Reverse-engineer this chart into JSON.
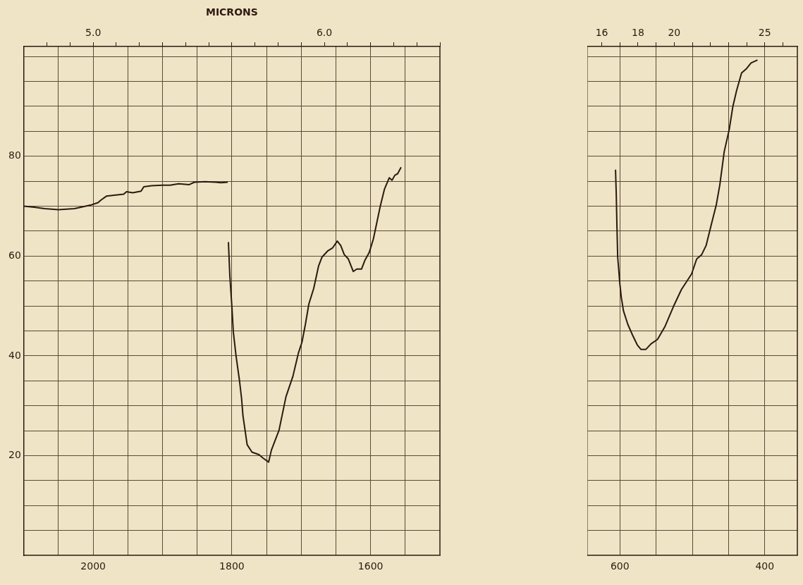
{
  "chart_data": [
    {
      "type": "line",
      "x2label": "MICRONS",
      "xlim": [
        2100,
        1500
      ],
      "ylim": [
        0,
        102
      ],
      "x2lim": [
        4.7,
        6.5
      ],
      "xticks": [
        {
          "value": 2050,
          "label": null
        },
        2000,
        {
          "value": 1950,
          "label": null
        },
        {
          "value": 1900,
          "label": null
        },
        {
          "value": 1850,
          "label": null
        },
        1800,
        {
          "value": 1750,
          "label": null
        },
        {
          "value": 1700,
          "label": null
        },
        {
          "value": 1650,
          "label": null
        },
        1600,
        {
          "value": 1550,
          "label": null
        }
      ],
      "yticks": [
        {
          "value": 5,
          "label": null
        },
        {
          "value": 10,
          "label": null
        },
        {
          "value": 15,
          "label": null
        },
        20,
        {
          "value": 25,
          "label": null
        },
        {
          "value": 30,
          "label": null
        },
        {
          "value": 35,
          "label": null
        },
        40,
        {
          "value": 45,
          "label": null
        },
        {
          "value": 50,
          "label": null
        },
        {
          "value": 55,
          "label": null
        },
        60,
        {
          "value": 65,
          "label": null
        },
        {
          "value": 70,
          "label": null
        },
        {
          "value": 75,
          "label": null
        },
        80,
        {
          "value": 85,
          "label": null
        },
        {
          "value": 90,
          "label": null
        },
        {
          "value": 95,
          "label": null
        },
        {
          "value": 100,
          "label": null
        }
      ],
      "x2ticks": [
        {
          "value": 4.8,
          "label": null
        },
        {
          "value": 4.9,
          "label": null
        },
        {
          "value": 5.0,
          "label": "5.0"
        },
        {
          "value": 5.1,
          "label": null
        },
        {
          "value": 5.2,
          "label": null
        },
        {
          "value": 5.3,
          "label": null
        },
        {
          "value": 5.4,
          "label": null
        },
        {
          "value": 5.5,
          "label": null
        },
        {
          "value": 5.6,
          "label": null
        },
        {
          "value": 5.7,
          "label": null
        },
        {
          "value": 5.8,
          "label": null
        },
        {
          "value": 5.9,
          "label": null
        },
        {
          "value": 6.0,
          "label": "6.0"
        },
        {
          "value": 6.1,
          "label": null
        },
        {
          "value": 6.2,
          "label": null
        },
        {
          "value": 6.3,
          "label": null
        },
        {
          "value": 6.4,
          "label": null
        },
        {
          "value": 6.5,
          "label": null
        }
      ],
      "grid": true,
      "series": [
        {
          "color": "#2b1a10",
          "x": [
            2100,
            2085,
            2070,
            2050,
            2027,
            2004,
            1993,
            1989,
            1981,
            1970,
            1956,
            1952,
            1943,
            1931,
            1927,
            1916,
            1900,
            1889,
            1877,
            1862,
            1854,
            1839,
            1823,
            1816,
            1806,
            1805.5,
            1805,
            1803,
            1800,
            1798,
            1794,
            1789,
            1786,
            1784,
            1778,
            1771,
            1761,
            1755,
            1747,
            1743,
            1732,
            1722,
            1712,
            1704,
            1699,
            1694,
            1689,
            1682,
            1675,
            1670,
            1662,
            1655,
            1648,
            1643,
            1638,
            1632,
            1625,
            1620,
            1613,
            1608,
            1602,
            1596,
            1586,
            1580,
            1573,
            1569,
            1565,
            1561,
            1556
          ],
          "values": [
            70.0,
            69.8,
            69.5,
            69.3,
            69.5,
            70.2,
            70.7,
            71.2,
            72.0,
            72.2,
            72.4,
            72.9,
            72.7,
            73.0,
            73.9,
            74.1,
            74.2,
            74.2,
            74.5,
            74.3,
            74.8,
            74.9,
            74.8,
            74.7,
            74.8,
            null,
            62.8,
            56.2,
            49.9,
            44.9,
            40.0,
            35.0,
            31.4,
            28.0,
            22.2,
            20.7,
            20.2,
            19.5,
            18.7,
            21.1,
            25.1,
            31.8,
            35.9,
            40.6,
            42.7,
            46.3,
            50.4,
            53.5,
            58.0,
            59.8,
            61.0,
            61.6,
            63.0,
            62.1,
            60.3,
            59.4,
            56.9,
            57.4,
            57.4,
            59.2,
            60.7,
            63.4,
            70.0,
            73.4,
            75.7,
            75.2,
            76.2,
            76.5,
            77.8
          ]
        }
      ]
    },
    {
      "type": "line",
      "xlim": [
        645,
        355
      ],
      "ylim": [
        0,
        102
      ],
      "x2lim": [
        15.2,
        26.8
      ],
      "tick_labels": "x",
      "xticks": [
        600,
        {
          "value": 550,
          "label": null
        },
        {
          "value": 500,
          "label": null
        },
        {
          "value": 450,
          "label": null
        },
        400
      ],
      "yticks": [
        {
          "value": 5,
          "label": null
        },
        {
          "value": 10,
          "label": null
        },
        {
          "value": 15,
          "label": null
        },
        {
          "value": 20,
          "label": null
        },
        {
          "value": 25,
          "label": null
        },
        {
          "value": 30,
          "label": null
        },
        {
          "value": 35,
          "label": null
        },
        {
          "value": 40,
          "label": null
        },
        {
          "value": 45,
          "label": null
        },
        {
          "value": 50,
          "label": null
        },
        {
          "value": 55,
          "label": null
        },
        {
          "value": 60,
          "label": null
        },
        {
          "value": 65,
          "label": null
        },
        {
          "value": 70,
          "label": null
        },
        {
          "value": 75,
          "label": null
        },
        {
          "value": 80,
          "label": null
        },
        {
          "value": 85,
          "label": null
        },
        {
          "value": 90,
          "label": null
        },
        {
          "value": 95,
          "label": null
        },
        {
          "value": 100,
          "label": null
        }
      ],
      "x2ticks": [
        16,
        {
          "value": 17,
          "label": null
        },
        18,
        {
          "value": 19,
          "label": null
        },
        20,
        {
          "value": 21,
          "label": null
        },
        {
          "value": 22,
          "label": null
        },
        {
          "value": 23,
          "label": null
        },
        {
          "value": 24,
          "label": null
        },
        25,
        {
          "value": 26,
          "label": null
        }
      ],
      "grid": true,
      "series": [
        {
          "color": "#2b1a10",
          "x": [
            606,
            605,
            604,
            603,
            600,
            598,
            595,
            589,
            582,
            576,
            571,
            564,
            557,
            548,
            538,
            526,
            515,
            501,
            494,
            487,
            481,
            474,
            467,
            462,
            456,
            449,
            444,
            439,
            432,
            425,
            419,
            410
          ],
          "values": [
            77.3,
            72.5,
            65.7,
            59.8,
            54.4,
            51.7,
            49.0,
            46.3,
            44.0,
            42.2,
            41.3,
            41.3,
            42.4,
            43.3,
            45.8,
            49.9,
            53.3,
            56.4,
            59.4,
            60.3,
            62.1,
            66.2,
            70.2,
            74.3,
            80.9,
            85.4,
            90.0,
            93.1,
            96.7,
            97.6,
            98.7,
            99.3
          ]
        }
      ]
    }
  ]
}
